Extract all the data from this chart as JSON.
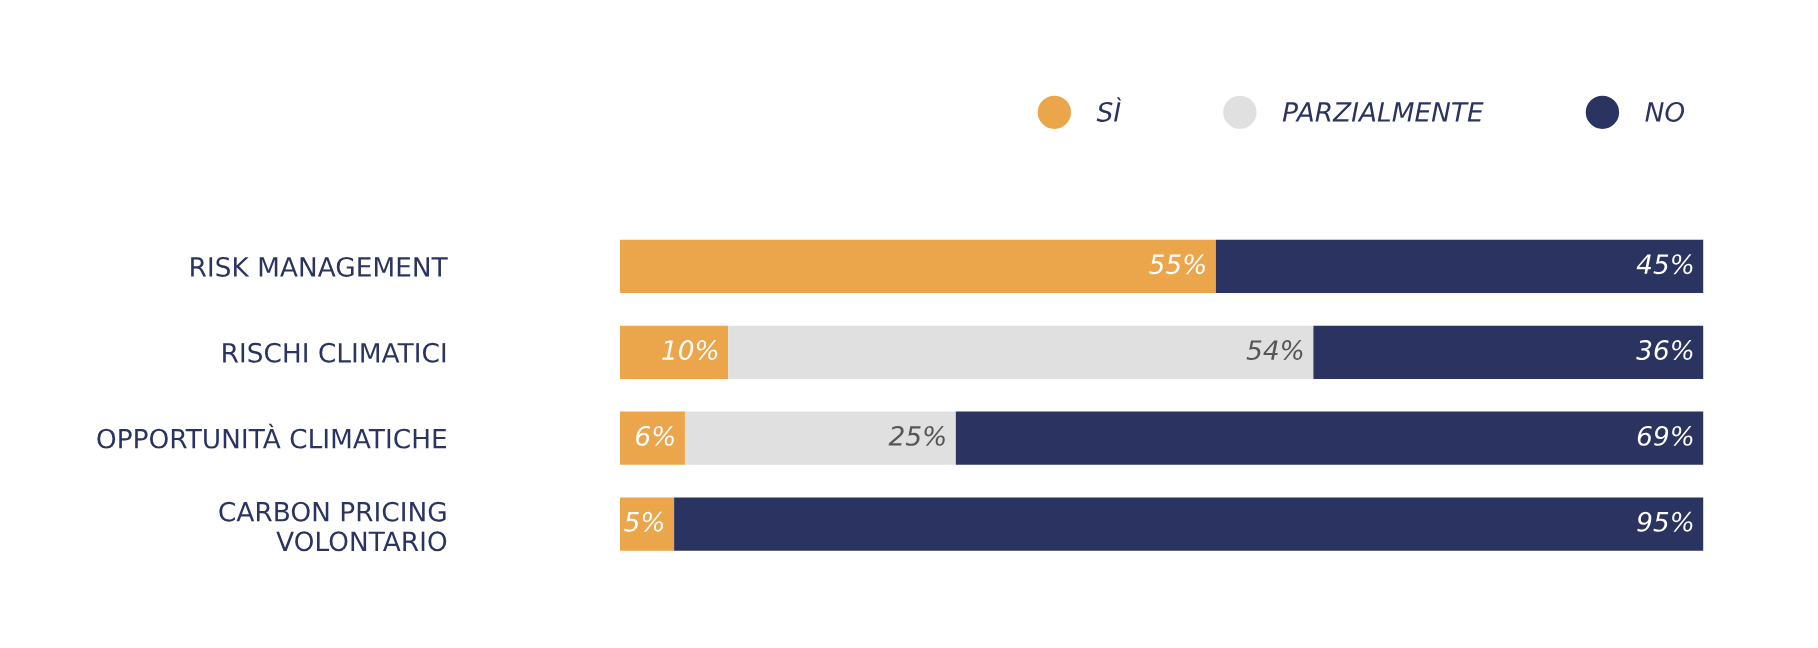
{
  "chart_data": {
    "type": "bar",
    "orientation": "horizontal",
    "stacked": true,
    "legend": "top right",
    "marker": "circle",
    "categories": [
      "RISK MANAGEMENT",
      "RISCHI CLIMATICI",
      "OPPORTUNITÀ CLIMATICHE",
      "CARBON PRICING\nVOLONTARIO"
    ],
    "series": [
      {
        "name": "SÌ",
        "color": "#eba64c",
        "values": [
          55,
          10,
          6,
          5
        ],
        "value_labels": [
          "55%",
          "10%",
          "6%",
          "5%"
        ]
      },
      {
        "name": "PARZIALMENTE",
        "color": "#e0e0e0",
        "values": [
          null,
          54,
          25,
          null
        ],
        "value_labels": [
          null,
          "54%",
          "25%",
          null
        ]
      },
      {
        "name": "NO",
        "color": "#2b3361",
        "values": [
          45,
          36,
          69,
          95
        ],
        "value_labels": [
          "45%",
          "36%",
          "69%",
          "95%"
        ]
      }
    ]
  }
}
